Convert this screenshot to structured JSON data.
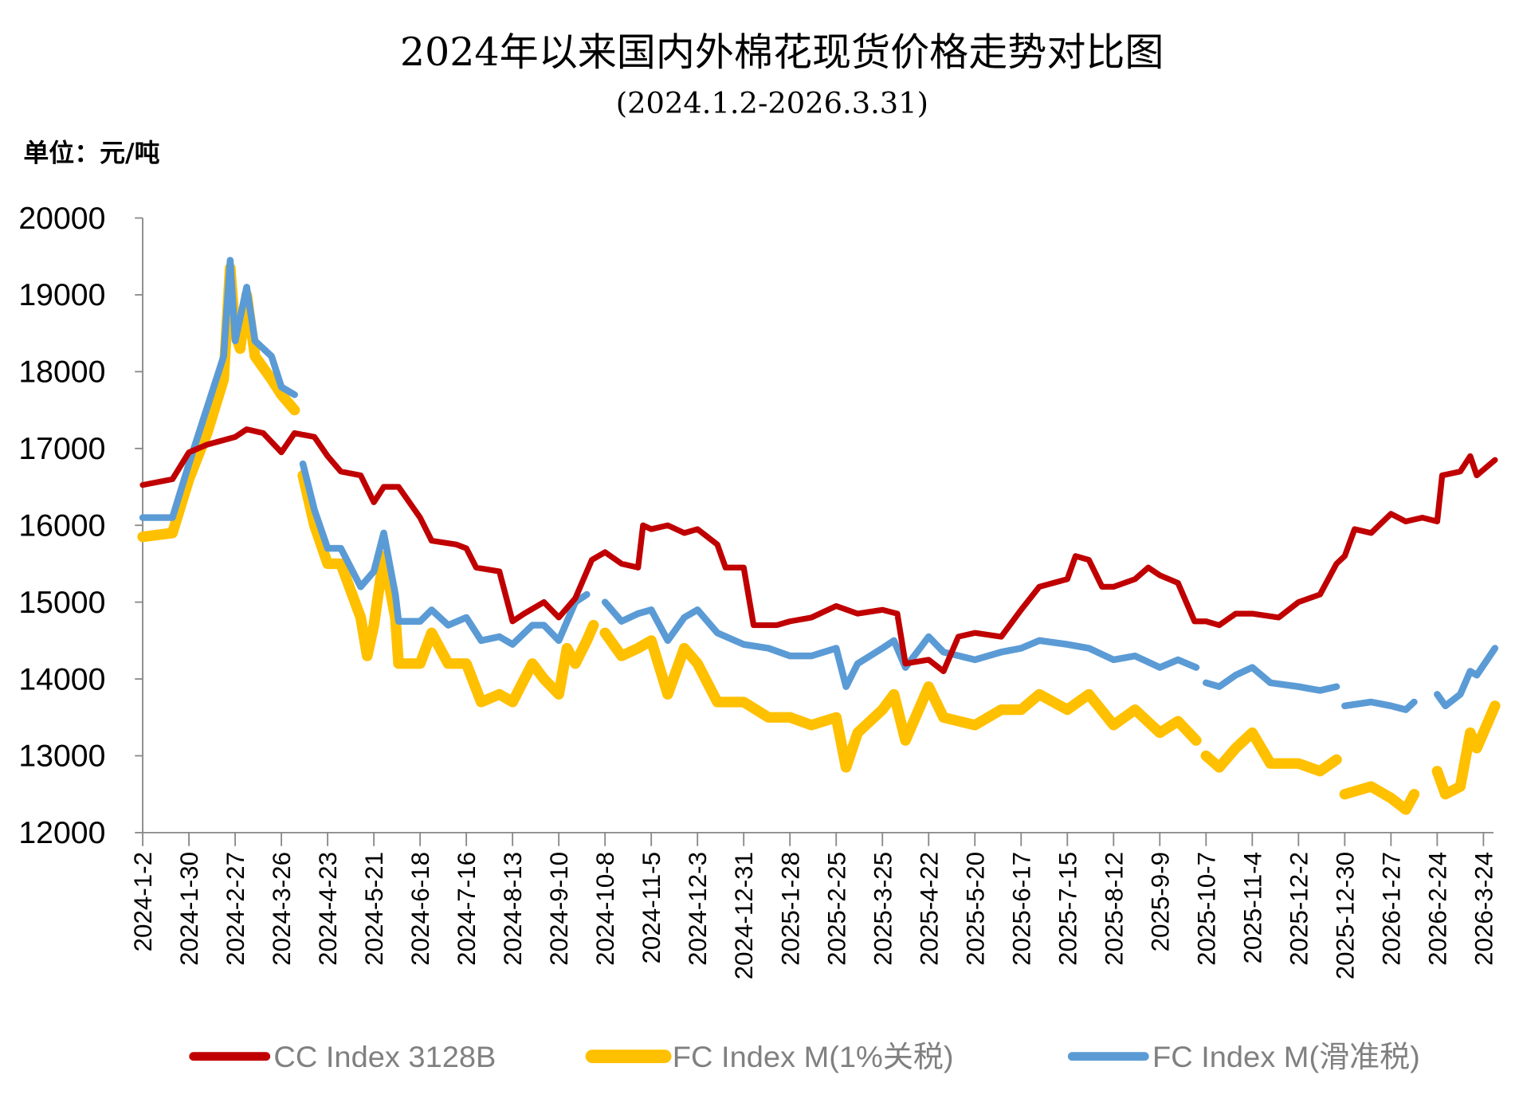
{
  "chart_data": {
    "type": "line",
    "title": "2024年以来国内外棉花现货价格走势对比图",
    "subtitle": "(2024.1.2-2026.3.31)",
    "unit_label": "单位：元/吨",
    "ylim": [
      12000,
      20000
    ],
    "yticks": [
      "20000",
      "19000",
      "18000",
      "17000",
      "16000",
      "15000",
      "14000",
      "13000",
      "12000"
    ],
    "xticks": [
      "2024-1-2",
      "2024-1-30",
      "2024-2-27",
      "2024-3-26",
      "2024-4-23",
      "2024-5-21",
      "2024-6-18",
      "2024-7-16",
      "2024-8-13",
      "2024-9-10",
      "2024-10-8",
      "2024-11-5",
      "2024-12-3",
      "2024-12-31",
      "2025-1-28",
      "2025-2-25",
      "2025-3-25",
      "2025-4-22",
      "2025-5-20",
      "2025-6-17",
      "2025-7-15",
      "2025-8-12",
      "2025-9-9",
      "2025-10-7",
      "2025-11-4",
      "2025-12-2",
      "2025-12-30",
      "2026-1-27",
      "2026-2-24",
      "2026-3-24"
    ],
    "grid": false,
    "legend_position": "bottom",
    "series": [
      {
        "name": "CC Index 3128B",
        "color": "#C00000",
        "points": [
          [
            "2024-1-2",
            16525
          ],
          [
            "2024-1-20",
            16600
          ],
          [
            "2024-1-30",
            16950
          ],
          [
            "2024-2-10",
            17050
          ],
          [
            "2024-2-27",
            17150
          ],
          [
            "2024-3-5",
            17250
          ],
          [
            "2024-3-15",
            17200
          ],
          [
            "2024-3-26",
            16950
          ],
          [
            "2024-4-3",
            17200
          ],
          [
            "2024-4-15",
            17150
          ],
          [
            "2024-4-23",
            16900
          ],
          [
            "2024-5-1",
            16700
          ],
          [
            "2024-5-13",
            16650
          ],
          [
            "2024-5-21",
            16300
          ],
          [
            "2024-5-27",
            16500
          ],
          [
            "2024-6-5",
            16500
          ],
          [
            "2024-6-18",
            16100
          ],
          [
            "2024-6-25",
            15800
          ],
          [
            "2024-7-10",
            15750
          ],
          [
            "2024-7-16",
            15700
          ],
          [
            "2024-7-22",
            15450
          ],
          [
            "2024-8-5",
            15400
          ],
          [
            "2024-8-13",
            14750
          ],
          [
            "2024-8-20",
            14850
          ],
          [
            "2024-9-1",
            15000
          ],
          [
            "2024-9-10",
            14800
          ],
          [
            "2024-9-20",
            15050
          ],
          [
            "2024-9-30",
            15550
          ],
          [
            "2024-10-8",
            15650
          ],
          [
            "2024-10-18",
            15500
          ],
          [
            "2024-10-28",
            15450
          ],
          [
            "2024-10-31",
            16000
          ],
          [
            "2024-11-5",
            15950
          ],
          [
            "2024-11-15",
            16000
          ],
          [
            "2024-11-25",
            15900
          ],
          [
            "2024-12-3",
            15950
          ],
          [
            "2024-12-15",
            15750
          ],
          [
            "2024-12-20",
            15450
          ],
          [
            "2024-12-31",
            15450
          ],
          [
            "2025-1-6",
            14700
          ],
          [
            "2025-1-20",
            14700
          ],
          [
            "2025-1-28",
            14750
          ],
          [
            "2025-2-10",
            14800
          ],
          [
            "2025-2-25",
            14950
          ],
          [
            "2025-3-10",
            14850
          ],
          [
            "2025-3-25",
            14900
          ],
          [
            "2025-4-3",
            14850
          ],
          [
            "2025-4-8",
            14200
          ],
          [
            "2025-4-22",
            14250
          ],
          [
            "2025-5-1",
            14100
          ],
          [
            "2025-5-10",
            14550
          ],
          [
            "2025-5-20",
            14600
          ],
          [
            "2025-6-5",
            14550
          ],
          [
            "2025-6-17",
            14900
          ],
          [
            "2025-6-28",
            15200
          ],
          [
            "2025-7-15",
            15300
          ],
          [
            "2025-7-20",
            15600
          ],
          [
            "2025-7-28",
            15550
          ],
          [
            "2025-8-5",
            15200
          ],
          [
            "2025-8-12",
            15200
          ],
          [
            "2025-8-25",
            15300
          ],
          [
            "2025-9-2",
            15450
          ],
          [
            "2025-9-9",
            15350
          ],
          [
            "2025-9-20",
            15250
          ],
          [
            "2025-9-30",
            14750
          ],
          [
            "2025-10-7",
            14750
          ],
          [
            "2025-10-15",
            14700
          ],
          [
            "2025-10-25",
            14850
          ],
          [
            "2025-11-4",
            14850
          ],
          [
            "2025-11-20",
            14800
          ],
          [
            "2025-12-2",
            15000
          ],
          [
            "2025-12-15",
            15100
          ],
          [
            "2025-12-25",
            15500
          ],
          [
            "2025-12-30",
            15600
          ],
          [
            "2026-1-5",
            15950
          ],
          [
            "2026-1-15",
            15900
          ],
          [
            "2026-1-27",
            16150
          ],
          [
            "2026-2-5",
            16050
          ],
          [
            "2026-2-15",
            16100
          ],
          [
            "2026-2-24",
            16050
          ],
          [
            "2026-2-27",
            16650
          ],
          [
            "2026-3-10",
            16700
          ],
          [
            "2026-3-16",
            16900
          ],
          [
            "2026-3-20",
            16650
          ],
          [
            "2026-3-31",
            16850
          ]
        ]
      },
      {
        "name": "FC Index M(1%关税)",
        "color": "#FFC000",
        "points": [
          [
            "2024-1-2",
            15850
          ],
          [
            "2024-1-20",
            15900
          ],
          [
            "2024-1-30",
            16600
          ],
          [
            "2024-2-10",
            17200
          ],
          [
            "2024-2-20",
            17900
          ],
          [
            "2024-2-24",
            19350
          ],
          [
            "2024-2-27",
            18500
          ],
          [
            "2024-3-1",
            18300
          ],
          [
            "2024-3-5",
            19000
          ],
          [
            "2024-3-10",
            18200
          ],
          [
            "2024-3-20",
            17900
          ],
          [
            "2024-3-26",
            17700
          ],
          [
            "2024-4-3",
            17500
          ],
          null,
          [
            "2024-4-8",
            16650
          ],
          [
            "2024-4-15",
            16000
          ],
          [
            "2024-4-23",
            15500
          ],
          [
            "2024-5-1",
            15500
          ],
          [
            "2024-5-13",
            14800
          ],
          [
            "2024-5-17",
            14300
          ],
          [
            "2024-5-21",
            14700
          ],
          [
            "2024-5-27",
            15600
          ],
          [
            "2024-6-3",
            14800
          ],
          [
            "2024-6-5",
            14200
          ],
          [
            "2024-6-18",
            14200
          ],
          [
            "2024-6-25",
            14600
          ],
          [
            "2024-7-5",
            14200
          ],
          [
            "2024-7-16",
            14200
          ],
          [
            "2024-7-25",
            13700
          ],
          [
            "2024-8-5",
            13800
          ],
          [
            "2024-8-13",
            13700
          ],
          [
            "2024-8-25",
            14200
          ],
          [
            "2024-9-1",
            14000
          ],
          [
            "2024-9-10",
            13800
          ],
          [
            "2024-9-15",
            14400
          ],
          [
            "2024-9-20",
            14200
          ],
          [
            "2024-9-27",
            14500
          ],
          [
            "2024-10-1",
            14700
          ],
          null,
          [
            "2024-10-8",
            14600
          ],
          [
            "2024-10-18",
            14300
          ],
          [
            "2024-10-28",
            14400
          ],
          [
            "2024-11-5",
            14500
          ],
          [
            "2024-11-15",
            13800
          ],
          [
            "2024-11-25",
            14400
          ],
          [
            "2024-12-3",
            14200
          ],
          [
            "2024-12-15",
            13700
          ],
          [
            "2024-12-31",
            13700
          ],
          [
            "2025-1-15",
            13500
          ],
          [
            "2025-1-28",
            13500
          ],
          [
            "2025-2-10",
            13400
          ],
          [
            "2025-2-25",
            13500
          ],
          [
            "2025-3-3",
            12850
          ],
          [
            "2025-3-10",
            13300
          ],
          [
            "2025-3-25",
            13600
          ],
          [
            "2025-4-1",
            13800
          ],
          [
            "2025-4-8",
            13200
          ],
          [
            "2025-4-22",
            13900
          ],
          [
            "2025-5-1",
            13500
          ],
          [
            "2025-5-20",
            13400
          ],
          [
            "2025-6-5",
            13600
          ],
          [
            "2025-6-17",
            13600
          ],
          [
            "2025-6-28",
            13800
          ],
          [
            "2025-7-15",
            13600
          ],
          [
            "2025-7-28",
            13800
          ],
          [
            "2025-8-12",
            13400
          ],
          [
            "2025-8-25",
            13600
          ],
          [
            "2025-9-9",
            13300
          ],
          [
            "2025-9-20",
            13450
          ],
          [
            "2025-10-1",
            13200
          ],
          null,
          [
            "2025-10-7",
            13000
          ],
          [
            "2025-10-15",
            12850
          ],
          [
            "2025-10-25",
            13100
          ],
          [
            "2025-11-4",
            13300
          ],
          [
            "2025-11-15",
            12900
          ],
          [
            "2025-12-2",
            12900
          ],
          [
            "2025-12-15",
            12800
          ],
          [
            "2025-12-25",
            12950
          ],
          null,
          [
            "2025-12-30",
            12500
          ],
          [
            "2026-1-15",
            12600
          ],
          [
            "2026-1-27",
            12450
          ],
          [
            "2026-2-5",
            12300
          ],
          [
            "2026-2-10",
            12500
          ],
          null,
          [
            "2026-2-24",
            12800
          ],
          [
            "2026-3-1",
            12500
          ],
          [
            "2026-3-10",
            12600
          ],
          [
            "2026-3-16",
            13300
          ],
          [
            "2026-3-20",
            13100
          ],
          [
            "2026-3-31",
            13650
          ]
        ]
      },
      {
        "name": "FC Index M(滑准税)",
        "color": "#5B9BD5",
        "points": [
          [
            "2024-1-2",
            16100
          ],
          [
            "2024-1-20",
            16100
          ],
          [
            "2024-1-30",
            16800
          ],
          [
            "2024-2-20",
            18200
          ],
          [
            "2024-2-24",
            19450
          ],
          [
            "2024-2-27",
            18400
          ],
          [
            "2024-3-5",
            19100
          ],
          [
            "2024-3-10",
            18400
          ],
          [
            "2024-3-20",
            18200
          ],
          [
            "2024-3-26",
            17800
          ],
          [
            "2024-4-3",
            17700
          ],
          null,
          [
            "2024-4-8",
            16800
          ],
          [
            "2024-4-15",
            16200
          ],
          [
            "2024-4-23",
            15700
          ],
          [
            "2024-5-1",
            15700
          ],
          [
            "2024-5-13",
            15200
          ],
          [
            "2024-5-21",
            15400
          ],
          [
            "2024-5-27",
            15900
          ],
          [
            "2024-6-3",
            15100
          ],
          [
            "2024-6-5",
            14750
          ],
          [
            "2024-6-18",
            14750
          ],
          [
            "2024-6-25",
            14900
          ],
          [
            "2024-7-5",
            14700
          ],
          [
            "2024-7-16",
            14800
          ],
          [
            "2024-7-25",
            14500
          ],
          [
            "2024-8-5",
            14550
          ],
          [
            "2024-8-13",
            14450
          ],
          [
            "2024-8-25",
            14700
          ],
          [
            "2024-9-1",
            14700
          ],
          [
            "2024-9-10",
            14500
          ],
          [
            "2024-9-20",
            15000
          ],
          [
            "2024-9-27",
            15100
          ],
          null,
          [
            "2024-10-8",
            15000
          ],
          [
            "2024-10-18",
            14750
          ],
          [
            "2024-10-28",
            14850
          ],
          [
            "2024-11-5",
            14900
          ],
          [
            "2024-11-15",
            14500
          ],
          [
            "2024-11-25",
            14800
          ],
          [
            "2024-12-3",
            14900
          ],
          [
            "2024-12-15",
            14600
          ],
          [
            "2024-12-31",
            14450
          ],
          [
            "2025-1-15",
            14400
          ],
          [
            "2025-1-28",
            14300
          ],
          [
            "2025-2-10",
            14300
          ],
          [
            "2025-2-25",
            14400
          ],
          [
            "2025-3-3",
            13900
          ],
          [
            "2025-3-10",
            14200
          ],
          [
            "2025-3-25",
            14400
          ],
          [
            "2025-4-1",
            14500
          ],
          [
            "2025-4-8",
            14150
          ],
          [
            "2025-4-22",
            14550
          ],
          [
            "2025-5-1",
            14350
          ],
          [
            "2025-5-20",
            14250
          ],
          [
            "2025-6-5",
            14350
          ],
          [
            "2025-6-17",
            14400
          ],
          [
            "2025-6-28",
            14500
          ],
          [
            "2025-7-15",
            14450
          ],
          [
            "2025-7-28",
            14400
          ],
          [
            "2025-8-12",
            14250
          ],
          [
            "2025-8-25",
            14300
          ],
          [
            "2025-9-9",
            14150
          ],
          [
            "2025-9-20",
            14250
          ],
          [
            "2025-10-1",
            14150
          ],
          null,
          [
            "2025-10-7",
            13950
          ],
          [
            "2025-10-15",
            13900
          ],
          [
            "2025-10-25",
            14050
          ],
          [
            "2025-11-4",
            14150
          ],
          [
            "2025-11-15",
            13950
          ],
          [
            "2025-12-2",
            13900
          ],
          [
            "2025-12-15",
            13850
          ],
          [
            "2025-12-25",
            13900
          ],
          null,
          [
            "2025-12-30",
            13650
          ],
          [
            "2026-1-15",
            13700
          ],
          [
            "2026-1-27",
            13650
          ],
          [
            "2026-2-5",
            13600
          ],
          [
            "2026-2-10",
            13700
          ],
          null,
          [
            "2026-2-24",
            13800
          ],
          [
            "2026-3-1",
            13650
          ],
          [
            "2026-3-10",
            13800
          ],
          [
            "2026-3-16",
            14100
          ],
          [
            "2026-3-20",
            14050
          ],
          [
            "2026-3-31",
            14400
          ]
        ]
      }
    ]
  }
}
